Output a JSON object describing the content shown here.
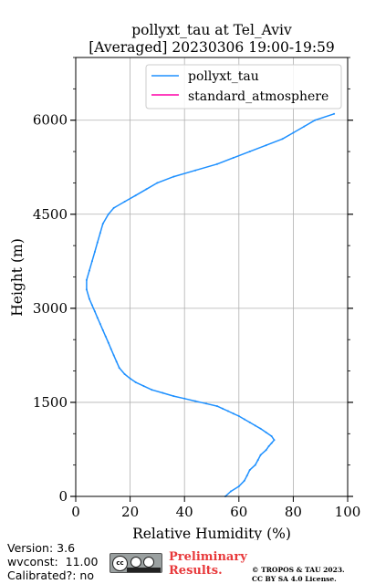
{
  "chart_data": {
    "type": "line",
    "title": "pollyxt_tau at Tel_Aviv",
    "subtitle": "[Averaged] 20230306 19:00-19:59",
    "xlabel": "Relative Humidity (%)",
    "ylabel": "Height (m)",
    "xlim": [
      0,
      100
    ],
    "ylim": [
      0,
      7000
    ],
    "xticks": [
      "0",
      "20",
      "40",
      "60",
      "80",
      "100"
    ],
    "yticks": [
      "0",
      "1500",
      "3000",
      "4500",
      "6000"
    ],
    "grid": true,
    "legend_position": "top-right",
    "series": [
      {
        "name": "pollyxt_tau",
        "color": "#1e90ff",
        "x": [
          55,
          57,
          60,
          62,
          63,
          64,
          66,
          67,
          68,
          70,
          71,
          72,
          73,
          72,
          70,
          68,
          66,
          64,
          62,
          60,
          58,
          56,
          54,
          52,
          48,
          44,
          40,
          36,
          32,
          28,
          25,
          22,
          20,
          18,
          16,
          15,
          14,
          13,
          12,
          11,
          10,
          9,
          8,
          7,
          6,
          5,
          4,
          4,
          5,
          6,
          7,
          8,
          9,
          10,
          12,
          14,
          18,
          22,
          26,
          30,
          36,
          44,
          52,
          58,
          64,
          70,
          76,
          80,
          84,
          88,
          95
        ],
        "y": [
          0,
          80,
          160,
          250,
          330,
          420,
          500,
          580,
          660,
          740,
          800,
          850,
          900,
          960,
          1020,
          1080,
          1130,
          1180,
          1230,
          1280,
          1320,
          1360,
          1400,
          1440,
          1480,
          1520,
          1560,
          1600,
          1650,
          1700,
          1760,
          1820,
          1880,
          1950,
          2050,
          2150,
          2250,
          2350,
          2450,
          2550,
          2650,
          2750,
          2850,
          2950,
          3050,
          3150,
          3300,
          3450,
          3600,
          3750,
          3900,
          4050,
          4200,
          4350,
          4500,
          4600,
          4700,
          4800,
          4900,
          5000,
          5100,
          5200,
          5300,
          5400,
          5500,
          5600,
          5700,
          5800,
          5900,
          6000,
          6100
        ]
      },
      {
        "name": "standard_atmosphere",
        "color": "#ff00a8",
        "x": [],
        "y": []
      }
    ]
  },
  "footer": {
    "version": "Version: 3.6",
    "wvconst": "wvconst:  11.00",
    "calibrated": "Calibrated?: no",
    "preliminary_line1": "Preliminary",
    "preliminary_line2": "Results.",
    "copyright_line1": "© TROPOS & TAU 2023.",
    "copyright_line2": "CC BY SA 4.0 License.",
    "license_icon": "creative-commons-by-sa-icon"
  }
}
